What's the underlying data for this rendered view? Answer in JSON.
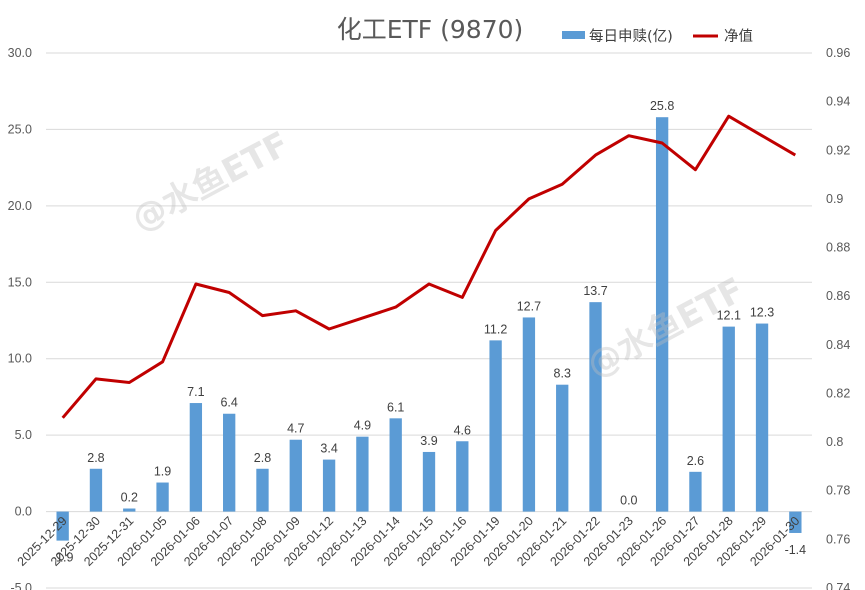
{
  "chart_data": {
    "type": "bar",
    "title": "化工ETF (9870)",
    "categories": [
      "2025-12-29",
      "2025-12-30",
      "2025-12-31",
      "2026-01-05",
      "2026-01-06",
      "2026-01-07",
      "2026-01-08",
      "2026-01-09",
      "2026-01-12",
      "2026-01-13",
      "2026-01-14",
      "2026-01-15",
      "2026-01-16",
      "2026-01-19",
      "2026-01-20",
      "2026-01-21",
      "2026-01-22",
      "2026-01-23",
      "2026-01-26",
      "2026-01-27",
      "2026-01-28",
      "2026-01-29",
      "2026-01-30"
    ],
    "series": [
      {
        "name": "每日申赎(亿)",
        "type": "bar",
        "axis": "left",
        "color": "#5b9bd5",
        "values": [
          -1.9,
          2.8,
          0.2,
          1.9,
          7.1,
          6.4,
          2.8,
          4.7,
          3.4,
          4.9,
          6.1,
          3.9,
          4.6,
          11.2,
          12.7,
          8.3,
          13.7,
          0.0,
          25.8,
          2.6,
          12.1,
          12.3,
          -1.4
        ],
        "labels": [
          "-1.9",
          "2.8",
          "0.2",
          "1.9",
          "7.1",
          "6.4",
          "2.8",
          "4.7",
          "3.4",
          "4.9",
          "6.1",
          "3.9",
          "4.6",
          "11.2",
          "12.7",
          "8.3",
          "13.7",
          "0.0",
          "25.8",
          "2.6",
          "12.1",
          "12.3",
          "-1.4"
        ]
      },
      {
        "name": "净值",
        "type": "line",
        "axis": "right",
        "color": "#c00000",
        "values": [
          0.81,
          0.826,
          0.8245,
          0.833,
          0.865,
          0.8615,
          0.852,
          0.854,
          0.8465,
          0.851,
          0.8555,
          0.865,
          0.8595,
          0.887,
          0.9,
          0.906,
          0.918,
          0.926,
          0.923,
          0.912,
          0.934,
          0.926,
          0.918
        ]
      }
    ],
    "y_left": {
      "min": -5,
      "max": 30,
      "step": 5,
      "ticks": [
        "-5.0",
        "0.0",
        "5.0",
        "10.0",
        "15.0",
        "20.0",
        "25.0",
        "30.0"
      ]
    },
    "y_right": {
      "min": 0.74,
      "max": 0.96,
      "step": 0.02,
      "ticks": [
        "0.74",
        "0.76",
        "0.78",
        "0.8",
        "0.82",
        "0.84",
        "0.86",
        "0.88",
        "0.9",
        "0.92",
        "0.94",
        "0.96"
      ]
    },
    "grid": true,
    "legend_position": "top-right",
    "watermark": "@水鱼ETF"
  }
}
